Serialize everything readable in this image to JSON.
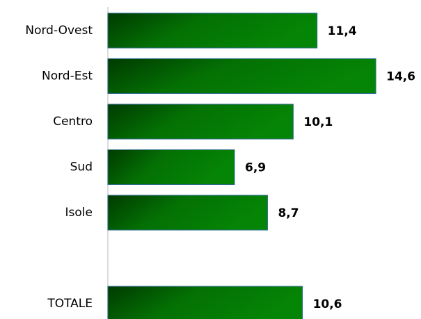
{
  "chart_data": {
    "type": "hbar",
    "categories": [
      "Nord-Ovest",
      "Nord-Est",
      "Centro",
      "Sud",
      "Isole",
      null,
      "TOTALE"
    ],
    "values": [
      11.4,
      14.6,
      10.1,
      6.9,
      8.7,
      null,
      10.6
    ],
    "value_labels": [
      "11,4",
      "14,6",
      "10,1",
      "6,9",
      "8,7",
      null,
      "10,6"
    ],
    "color": "#058005",
    "xlim": [
      0,
      16
    ]
  }
}
